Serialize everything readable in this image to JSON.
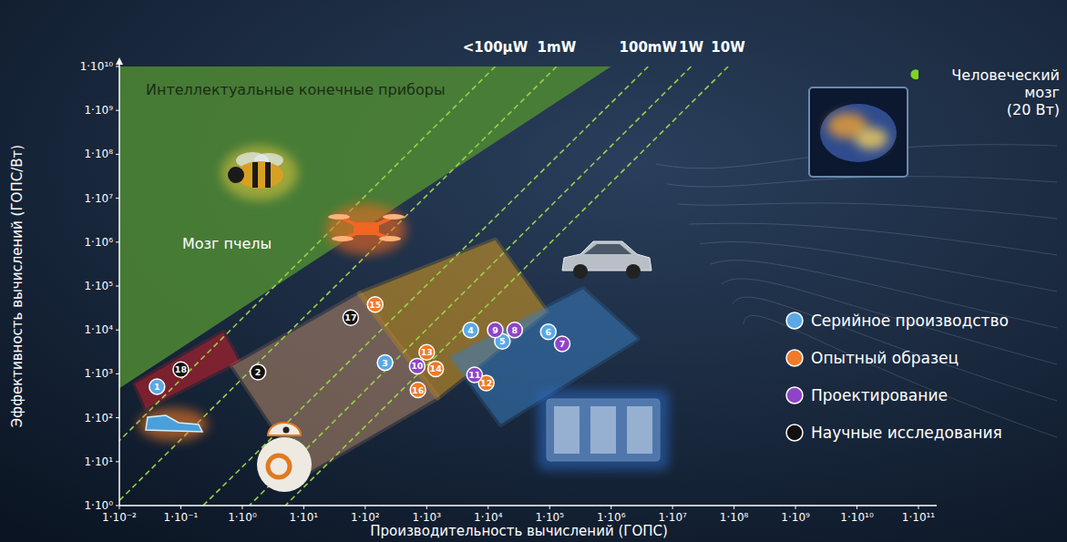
{
  "chart_data": {
    "type": "scatter",
    "log": true,
    "grid": false,
    "legend": "right",
    "x_label": "Производительность вычислений (ГОПС)",
    "y_label": "Эффективность вычислений (ГОПС/Вт)",
    "xlim": [
      0.01,
      100000000000
    ],
    "ylim": [
      1,
      10000000000
    ],
    "xticks": [
      {
        "value": 0.01,
        "label": "1·10⁻²"
      },
      {
        "value": 0.1,
        "label": "1·10⁻¹"
      },
      {
        "value": 1,
        "label": "1·10⁰"
      },
      {
        "value": 10,
        "label": "1·10¹"
      },
      {
        "value": 100,
        "label": "1·10²"
      },
      {
        "value": 1000,
        "label": "1·10³"
      },
      {
        "value": 10000,
        "label": "1·10⁴"
      },
      {
        "value": 100000,
        "label": "1·10⁵"
      },
      {
        "value": 1000000,
        "label": "1·10⁶"
      },
      {
        "value": 10000000,
        "label": "1·10⁷"
      },
      {
        "value": 100000000,
        "label": "1·10⁸"
      },
      {
        "value": 1000000000,
        "label": "1·10⁹"
      },
      {
        "value": 10000000000,
        "label": "1·10¹⁰"
      },
      {
        "value": 100000000000,
        "label": "1·10¹¹"
      }
    ],
    "yticks": [
      {
        "value": 1,
        "label": "1·10⁰"
      },
      {
        "value": 10,
        "label": "1·10¹"
      },
      {
        "value": 100,
        "label": "1·10²"
      },
      {
        "value": 1000,
        "label": "1·10³"
      },
      {
        "value": 10000,
        "label": "1·10⁴"
      },
      {
        "value": 100000,
        "label": "1·10⁵"
      },
      {
        "value": 1000000,
        "label": "1·10⁶"
      },
      {
        "value": 10000000,
        "label": "1·10⁷"
      },
      {
        "value": 100000000,
        "label": "1·10⁸"
      },
      {
        "value": 1000000000,
        "label": "1·10⁹"
      },
      {
        "value": 10000000000,
        "label": "1·10¹⁰"
      }
    ],
    "series": [
      {
        "name": "Серийное производство",
        "color": "#5aa9e6",
        "marker": "circle",
        "labels": [
          1,
          3,
          4,
          5,
          6
        ],
        "x": [
          0.041,
          210,
          5200,
          17000,
          95000
        ],
        "y": [
          510,
          1800,
          10000,
          5500,
          9100
        ]
      },
      {
        "name": "Опытный образец",
        "color": "#f07a28",
        "marker": "circle",
        "labels": [
          15,
          13,
          14,
          16,
          12
        ],
        "x": [
          145,
          1000,
          1400,
          720,
          9300
        ],
        "y": [
          38000,
          3100,
          1300,
          430,
          620
        ]
      },
      {
        "name": "Проектирование",
        "color": "#8e44c8",
        "marker": "circle",
        "labels": [
          10,
          9,
          8,
          11,
          7
        ],
        "x": [
          700,
          13000,
          27000,
          6000,
          160000
        ],
        "y": [
          1500,
          10000,
          10000,
          950,
          4800
        ]
      },
      {
        "name": "Научные исследования",
        "color": "#111111",
        "marker": "circle",
        "labels": [
          18,
          2,
          17
        ],
        "x": [
          0.1,
          1.8,
          58
        ],
        "y": [
          1250,
          1100,
          19000
        ]
      }
    ],
    "power_lines": [
      {
        "label": "<100µW",
        "color": "#9ad04a",
        "line_style": "dashed",
        "x": [
          13000,
          0.01
        ],
        "y": [
          10000000000,
          30
        ]
      },
      {
        "label": "1mW",
        "color": "#9ad04a",
        "line_style": "dashed",
        "x": [
          130000,
          0.01
        ],
        "y": [
          10000000000,
          1.3
        ]
      },
      {
        "label": "100mW",
        "color": "#9ad04a",
        "line_style": "dashed",
        "x": [
          4000000,
          0.23
        ],
        "y": [
          10000000000,
          1
        ]
      },
      {
        "label": "1W",
        "color": "#9ad04a",
        "line_style": "dashed",
        "x": [
          20000000,
          1.3
        ],
        "y": [
          10000000000,
          1
        ]
      },
      {
        "label": "10W",
        "color": "#9ad04a",
        "line_style": "dashed",
        "x": [
          80000000,
          5
        ],
        "y": [
          10000000000,
          1
        ]
      }
    ],
    "regions": [
      {
        "color": "#4f8a34",
        "x": [
          0.01,
          1000000,
          0.01
        ],
        "y": [
          10000000000,
          10000000000,
          470
        ]
      },
      {
        "color": "#d0202a",
        "x": [
          0.018,
          0.49,
          0.87,
          0.027
        ],
        "y": [
          590,
          8700,
          1950,
          165
        ]
      },
      {
        "color": "#b88a6a",
        "x": [
          0.69,
          81,
          1500,
          10.5
        ],
        "y": [
          1500,
          67000,
          290,
          5.2
        ]
      },
      {
        "color": "#e0a020",
        "x": [
          81,
          13000,
          89000,
          1500
        ],
        "y": [
          67000,
          1100000,
          26000,
          290
        ]
      },
      {
        "color": "#3a7ec0",
        "x": [
          2500,
          350000,
          2700000,
          16000
        ],
        "y": [
          2400,
          85000,
          6300,
          71
        ]
      }
    ],
    "highlight": {
      "label_lines": [
        "Человеческий",
        "мозг",
        "(20 Вт)"
      ],
      "color": "#7ed321",
      "x": 90000000000,
      "y": 6600000000
    },
    "annotations": [
      {
        "text": "Интеллектуальные конечные приборы"
      },
      {
        "text": "Мозг пчелы"
      }
    ]
  }
}
